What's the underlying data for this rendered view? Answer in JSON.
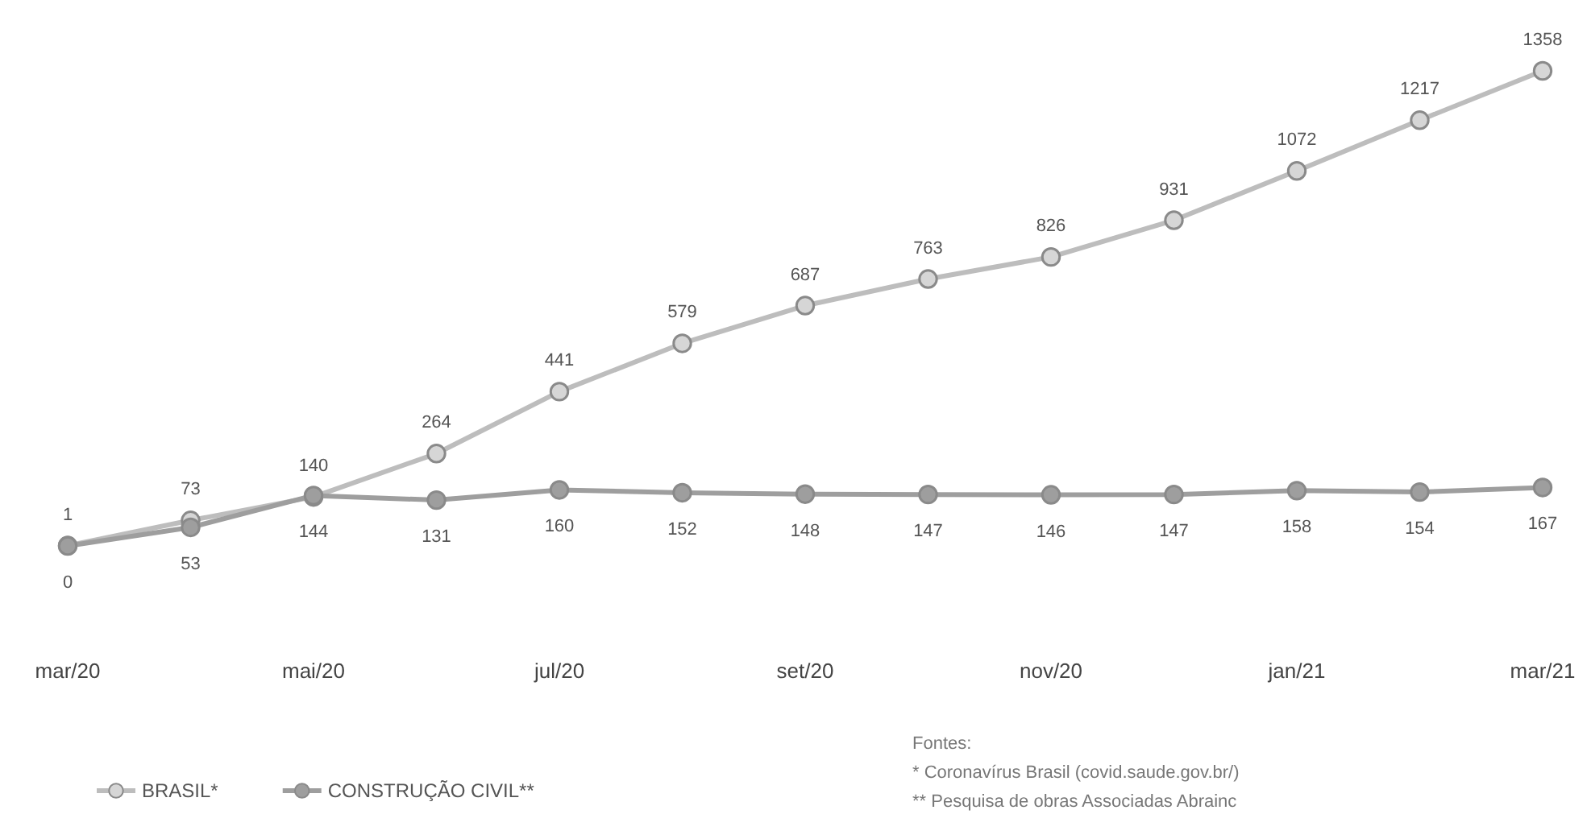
{
  "chart_data": {
    "type": "line",
    "categories": [
      "mar/20",
      null,
      "mai/20",
      null,
      "jul/20",
      null,
      "set/20",
      null,
      "nov/20",
      null,
      "jan/21",
      null,
      "mar/21"
    ],
    "series": [
      {
        "name": "BRASIL*",
        "color": "#bdbdbd",
        "values": [
          1,
          73,
          140,
          264,
          441,
          579,
          687,
          763,
          826,
          931,
          1072,
          1217,
          1358
        ]
      },
      {
        "name": "CONSTRUÇÃO CIVIL**",
        "color": "#9e9e9e",
        "values": [
          0,
          53,
          144,
          131,
          160,
          152,
          148,
          147,
          146,
          147,
          158,
          154,
          167
        ]
      }
    ],
    "data_labels": true,
    "marker": "circle",
    "line_style": "solid",
    "grid": false,
    "legend": "bottom left",
    "annotations": [
      "Fontes:",
      "* Coronavírus Brasil (covid.saude.gov.br/)",
      "** Pesquisa de obras Associadas Abrainc"
    ]
  }
}
